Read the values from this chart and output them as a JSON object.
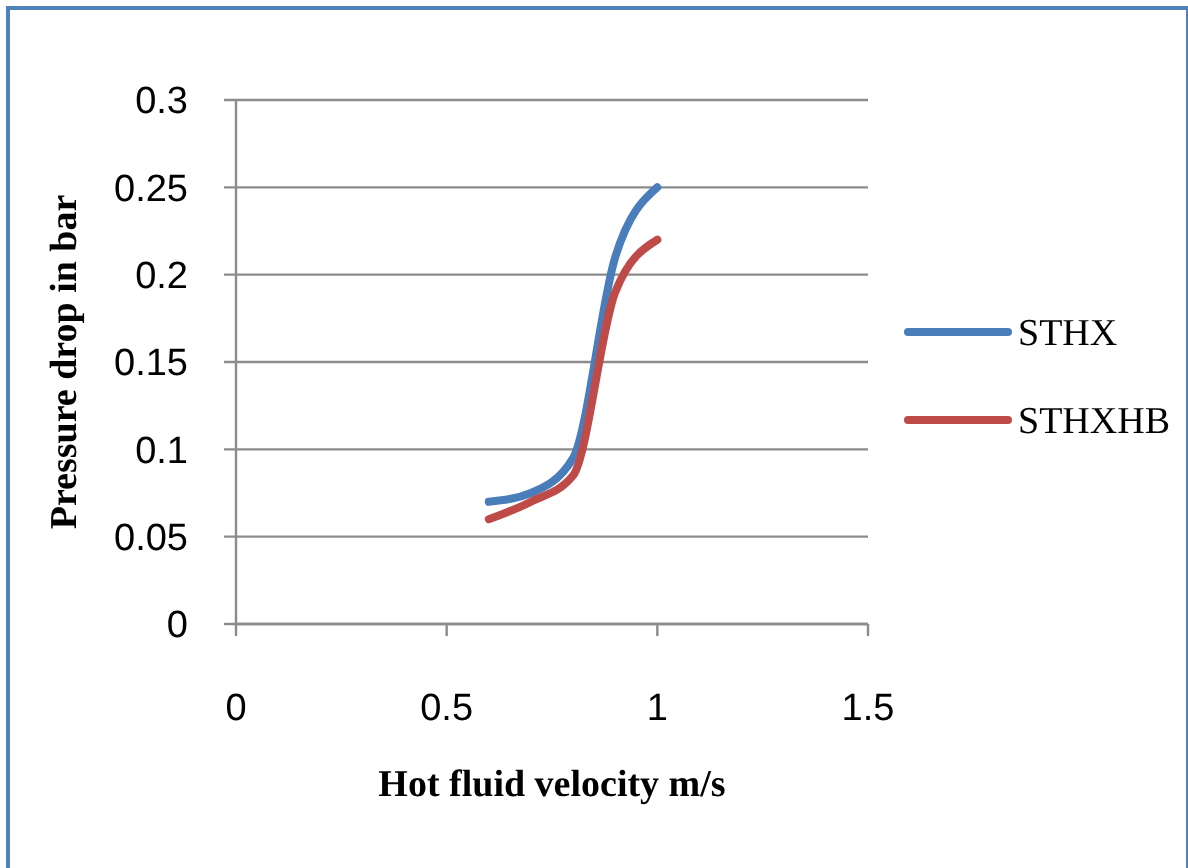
{
  "chart_data": {
    "type": "line",
    "xlabel": "Hot fluid velocity m/s",
    "ylabel": "Pressure drop in bar",
    "x": [
      0.6,
      0.7,
      0.8,
      0.9,
      1.0
    ],
    "series": [
      {
        "name": "STHX",
        "color": "#4a7ebb",
        "values": [
          0.07,
          0.075,
          0.095,
          0.21,
          0.25
        ]
      },
      {
        "name": "STHXHB",
        "color": "#be4b48",
        "values": [
          0.06,
          0.07,
          0.085,
          0.19,
          0.22
        ]
      }
    ],
    "xlim": [
      0,
      1.5
    ],
    "xticks": [
      0,
      0.5,
      1,
      1.5
    ],
    "ylim": [
      0,
      0.3
    ],
    "yticks": [
      0,
      0.05,
      0.1,
      0.15,
      0.2,
      0.25,
      0.3
    ],
    "grid": "y",
    "legend": "right",
    "marker": "none",
    "line_style": "solid"
  }
}
